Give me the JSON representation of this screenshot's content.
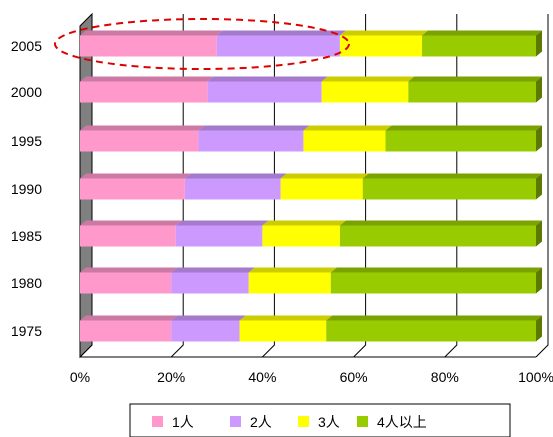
{
  "chart_data": {
    "type": "bar",
    "orientation": "horizontal",
    "stacked": "percent",
    "categories": [
      "2005",
      "2000",
      "1995",
      "1990",
      "1985",
      "1980",
      "1975"
    ],
    "series": [
      {
        "name": "1人",
        "color": "#ff99cc",
        "values": [
          30,
          28,
          26,
          23,
          21,
          20,
          20
        ]
      },
      {
        "name": "2人",
        "color": "#cc99ff",
        "values": [
          27,
          25,
          23,
          21,
          19,
          17,
          15
        ]
      },
      {
        "name": "3人",
        "color": "#ffff00",
        "values": [
          18,
          19,
          18,
          18,
          17,
          18,
          19
        ]
      },
      {
        "name": "4人以上",
        "color": "#99cc00",
        "values": [
          25,
          28,
          33,
          38,
          43,
          45,
          46
        ]
      }
    ],
    "x_ticks": [
      "0%",
      "20%",
      "40%",
      "60%",
      "80%",
      "100%"
    ],
    "xlim": [
      0,
      100
    ],
    "grid": true,
    "legend_position": "bottom",
    "highlight": {
      "category": "2005",
      "style": "red-dashed-ellipse",
      "color": "#e00000"
    }
  }
}
